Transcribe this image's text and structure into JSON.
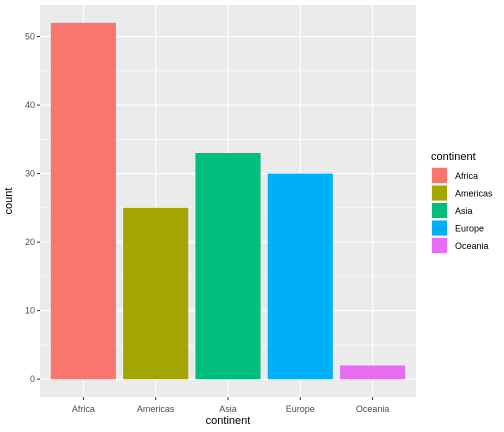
{
  "chart_data": {
    "type": "bar",
    "categories": [
      "Africa",
      "Americas",
      "Asia",
      "Europe",
      "Oceania"
    ],
    "values": [
      52,
      25,
      33,
      30,
      2
    ],
    "colors": [
      "#F8766D",
      "#A3A500",
      "#00BF7D",
      "#00B0F6",
      "#E76BF3"
    ],
    "title": "",
    "xlabel": "continent",
    "ylabel": "count",
    "ylim": [
      0,
      55
    ],
    "yticks": [
      0,
      10,
      20,
      30,
      40,
      50
    ],
    "grid": true,
    "panel_background": "#EBEBEB",
    "legend": {
      "title": "continent",
      "entries": [
        "Africa",
        "Americas",
        "Asia",
        "Europe",
        "Oceania"
      ],
      "placement": "right"
    }
  }
}
